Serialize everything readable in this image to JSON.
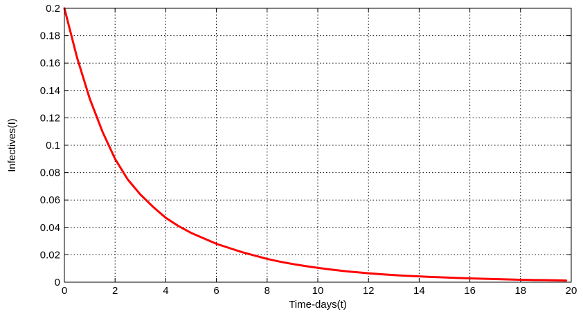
{
  "chart_data": {
    "type": "line",
    "title": "",
    "xlabel": "Time-days(t)",
    "ylabel": "Infectives(I)",
    "xlim": [
      0,
      20
    ],
    "ylim": [
      0,
      0.2
    ],
    "grid": true,
    "xticks": [
      0,
      2,
      4,
      6,
      8,
      10,
      12,
      14,
      16,
      18,
      20
    ],
    "yticks": [
      0,
      0.02,
      0.04,
      0.06,
      0.08,
      0.1,
      0.12,
      0.14,
      0.16,
      0.18,
      0.2
    ],
    "xtick_labels": [
      "0",
      "2",
      "4",
      "6",
      "8",
      "10",
      "12",
      "14",
      "16",
      "18",
      "20"
    ],
    "ytick_labels": [
      "0",
      "0.02",
      "0.04",
      "0.06",
      "0.08",
      "0.1",
      "0.12",
      "0.14",
      "0.16",
      "0.18",
      "0.2"
    ],
    "series": [
      {
        "color": "#ff0000",
        "x": [
          0,
          0.5,
          1,
          1.5,
          2,
          2.5,
          3,
          3.5,
          4,
          4.5,
          5,
          5.5,
          6,
          6.5,
          7,
          7.5,
          8,
          8.5,
          9,
          9.5,
          10,
          10.5,
          11,
          11.5,
          12,
          12.5,
          13,
          13.5,
          14,
          14.5,
          15,
          15.5,
          16,
          16.5,
          17,
          17.5,
          18,
          18.5,
          19,
          19.5,
          19.8
        ],
        "y": [
          0.2,
          0.164,
          0.134,
          0.11,
          0.09,
          0.075,
          0.064,
          0.055,
          0.047,
          0.041,
          0.036,
          0.032,
          0.028,
          0.025,
          0.022,
          0.0195,
          0.017,
          0.015,
          0.0133,
          0.0118,
          0.0105,
          0.0093,
          0.0082,
          0.0073,
          0.0065,
          0.0058,
          0.0052,
          0.0047,
          0.0042,
          0.0038,
          0.0035,
          0.0031,
          0.0028,
          0.0025,
          0.0023,
          0.002,
          0.0018,
          0.0016,
          0.0015,
          0.0013,
          0.0012
        ]
      }
    ]
  }
}
